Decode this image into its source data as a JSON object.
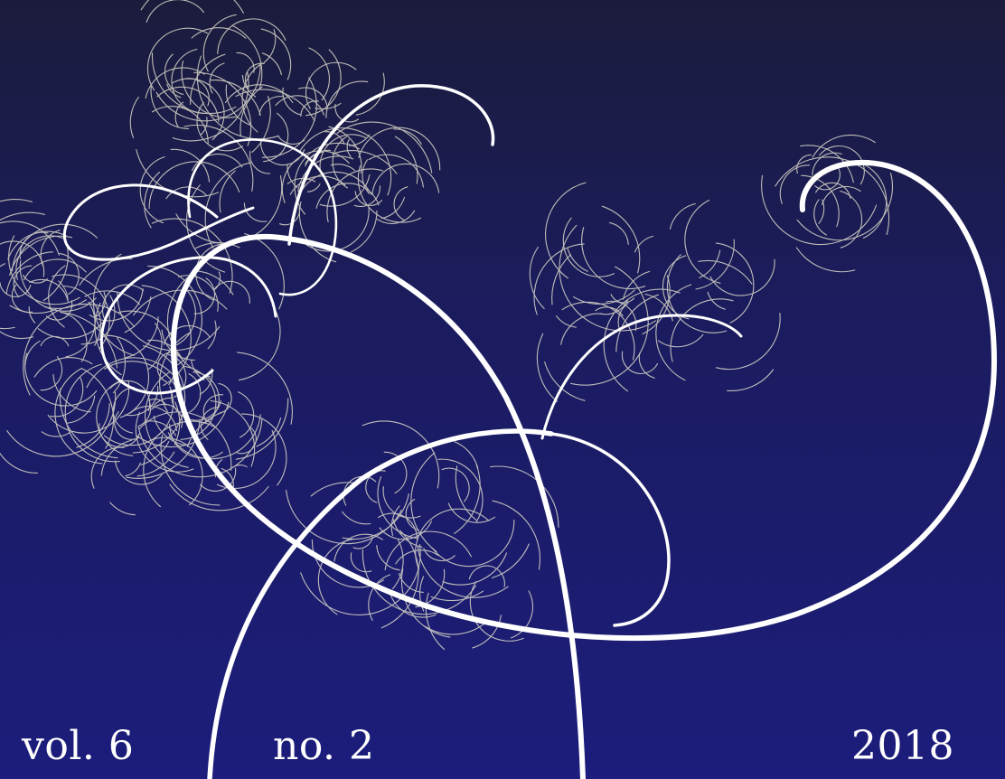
{
  "cover": {
    "artwork": "spiral-particle-tracks",
    "volume": "vol. 6",
    "number": "no. 2",
    "year": "2018",
    "colors": {
      "background_top": "#1b1c3c",
      "background_bottom": "#1c1d7c",
      "track": "#ffffff",
      "fine_track": "#dcdacb"
    }
  }
}
